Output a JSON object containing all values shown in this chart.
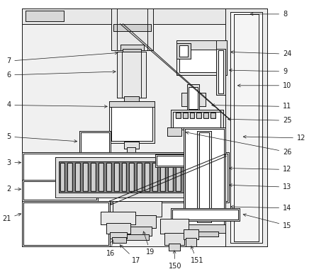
{
  "fig_width": 4.43,
  "fig_height": 3.87,
  "dpi": 100,
  "bg_color": "#ffffff",
  "lc": "#1a1a1a",
  "lw": 0.7,
  "fs": 7.0
}
